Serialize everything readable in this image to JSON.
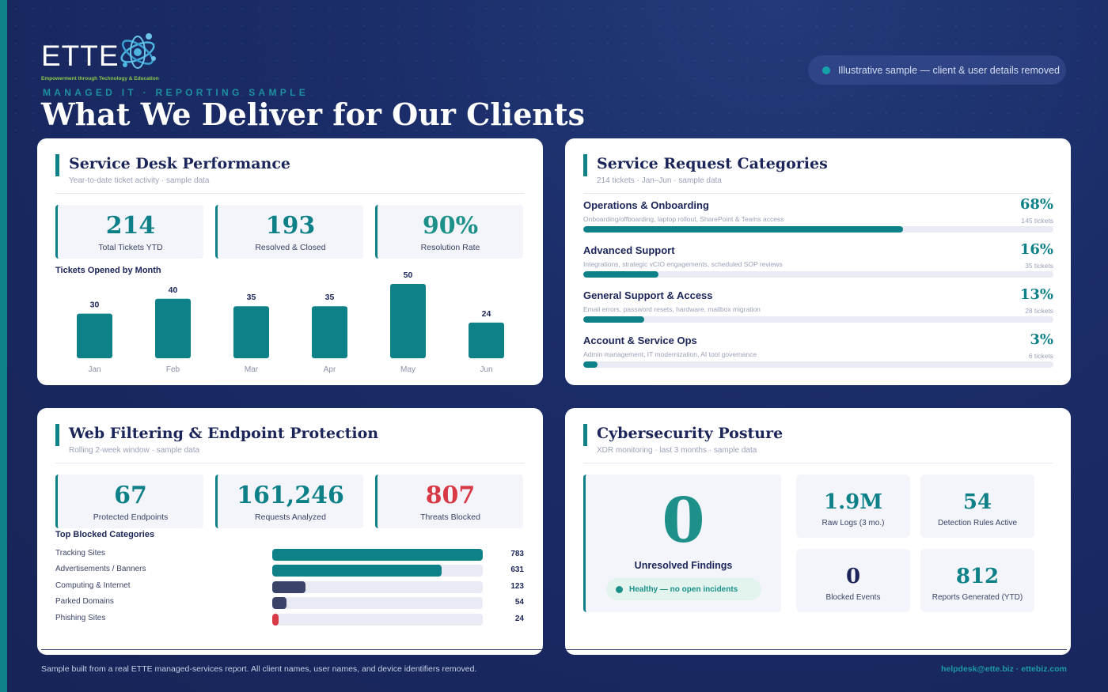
{
  "header": {
    "logo_word": "ETTE",
    "logo_tagline": "Empowerment through Technology & Education",
    "eyebrow": "MANAGED IT · REPORTING SAMPLE",
    "title": "What We Deliver for Our Clients",
    "sample_notice": "Illustrative sample — client & user details removed"
  },
  "service_desk": {
    "title": "Service Desk Performance",
    "subtitle": "Year-to-date ticket activity · sample data",
    "stats": [
      {
        "value": "214",
        "label": "Total Tickets YTD"
      },
      {
        "value": "193",
        "label": "Resolved & Closed"
      },
      {
        "value": "90%",
        "label": "Resolution Rate"
      }
    ],
    "chart_label": "Tickets Opened by Month"
  },
  "chart_data": {
    "type": "bar",
    "categories": [
      "Jan",
      "Feb",
      "Mar",
      "Apr",
      "May",
      "Jun"
    ],
    "values": [
      30,
      40,
      35,
      35,
      50,
      24
    ],
    "title": "Tickets Opened by Month",
    "xlabel": "",
    "ylabel": "",
    "ylim": [
      0,
      50
    ],
    "grid": false,
    "color": "#0e8088"
  },
  "request_categories": {
    "title": "Service Request Categories",
    "subtitle": "214 tickets · Jan–Jun · sample data",
    "items": [
      {
        "name": "Operations & Onboarding",
        "desc": "Onboarding/offboarding, laptop rollout, SharePoint & Teams access",
        "pct": "68%",
        "count": "145 tickets",
        "fraction": 0.68
      },
      {
        "name": "Advanced Support",
        "desc": "Integrations, strategic vCIO engagements, scheduled SOP reviews",
        "pct": "16%",
        "count": "35 tickets",
        "fraction": 0.16
      },
      {
        "name": "General Support & Access",
        "desc": "Email errors, password resets, hardware, mailbox migration",
        "pct": "13%",
        "count": "28 tickets",
        "fraction": 0.13
      },
      {
        "name": "Account & Service Ops",
        "desc": "Admin management, IT modernization, AI tool governance",
        "pct": "3%",
        "count": "6 tickets",
        "fraction": 0.03
      }
    ]
  },
  "web_filtering": {
    "title": "Web Filtering & Endpoint Protection",
    "subtitle": "Rolling 2-week window · sample data",
    "stats": [
      {
        "value": "67",
        "label": "Protected Endpoints"
      },
      {
        "value": "161,246",
        "label": "Requests Analyzed"
      },
      {
        "value": "807",
        "label": "Threats Blocked"
      }
    ],
    "blocked_label": "Top Blocked Categories",
    "blocked": [
      {
        "name": "Tracking Sites",
        "value": 783,
        "display": "783",
        "color": "#0e8088"
      },
      {
        "name": "Advertisements / Banners",
        "value": 631,
        "display": "631",
        "color": "#0e8088"
      },
      {
        "name": "Computing & Internet",
        "value": 123,
        "display": "123",
        "color": "#3b4468"
      },
      {
        "name": "Parked Domains",
        "value": 54,
        "display": "54",
        "color": "#3b4468"
      },
      {
        "name": "Phishing Sites",
        "value": 24,
        "display": "24",
        "color": "#d83a45"
      }
    ]
  },
  "cybersecurity": {
    "title": "Cybersecurity Posture",
    "subtitle": "XDR monitoring · last 3 months · sample data",
    "big_value": "0",
    "big_label": "Unresolved Findings",
    "healthy_label": "Healthy — no open incidents",
    "tiles": [
      {
        "value": "1.9M",
        "label": "Raw Logs (3 mo.)"
      },
      {
        "value": "54",
        "label": "Detection Rules Active"
      },
      {
        "value": "0",
        "label": "Blocked Events"
      },
      {
        "value": "812",
        "label": "Reports Generated (YTD)"
      }
    ]
  },
  "footer": {
    "note": "Sample built from a real ETTE managed-services report. All client names, user names, and device identifiers removed.",
    "contact": "helpdesk@ette.biz · ettebiz.com"
  }
}
